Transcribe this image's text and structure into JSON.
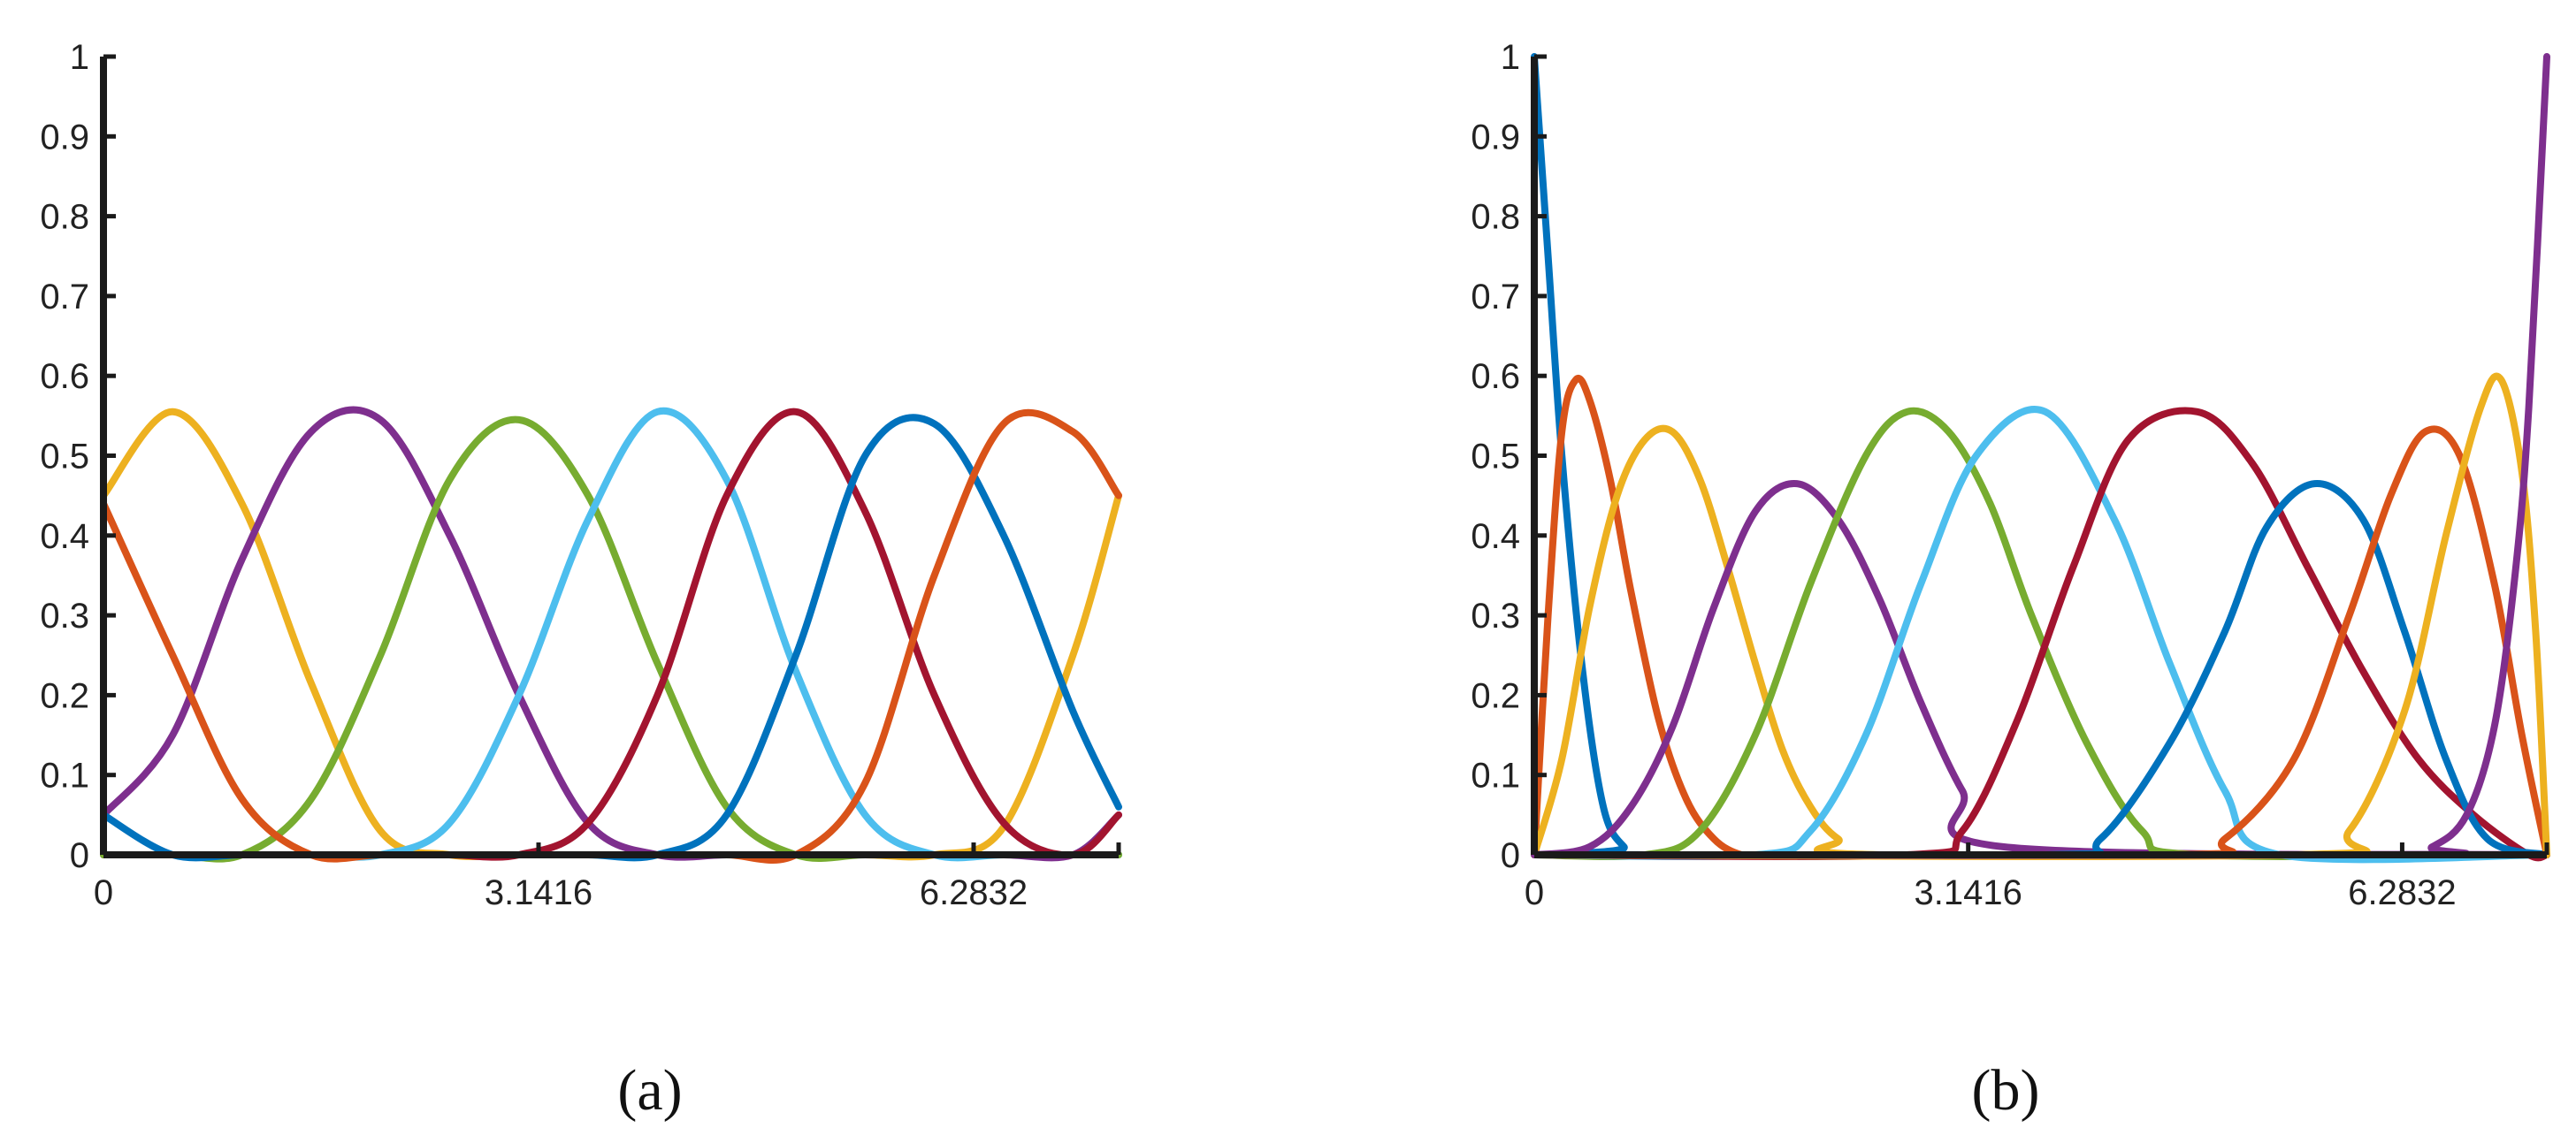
{
  "colors": {
    "blue": "#0072BD",
    "orange": "#D95319",
    "yellow": "#EDB120",
    "purple": "#7E2F8E",
    "green": "#77AC30",
    "cyan": "#4DBEEE",
    "red": "#A2142F",
    "axis": "#1a1a1a"
  },
  "chart_data": [
    {
      "type": "line",
      "panel": "a",
      "caption": "(a)",
      "title": "",
      "xlabel": "",
      "ylabel": "",
      "xlim": [
        0,
        7.3304
      ],
      "ylim": [
        0,
        1
      ],
      "xticks": [
        0,
        3.1416,
        6.2832
      ],
      "xtick_labels": [
        "0",
        "3.1416",
        "6.2832"
      ],
      "yticks": [
        0,
        0.1,
        0.2,
        0.3,
        0.4,
        0.5,
        0.6,
        0.7,
        0.8,
        0.9,
        1
      ],
      "ytick_labels": [
        "0",
        "0.1",
        "0.2",
        "0.3",
        "0.4",
        "0.5",
        "0.6",
        "0.7",
        "0.8",
        "0.9",
        "1"
      ],
      "series": [
        {
          "color": "yellow",
          "x": [
            0,
            0.5,
            1.0,
            1.5,
            2.0,
            2.5,
            3.0,
            3.5,
            4.0,
            4.5,
            5.0,
            5.5,
            6.0,
            6.5,
            7.0,
            7.3304
          ],
          "values": [
            0.45,
            0.555,
            0.44,
            0.215,
            0.03,
            0,
            0,
            0,
            0,
            0,
            0,
            0,
            0,
            0.035,
            0.25,
            0.45
          ]
        },
        {
          "color": "purple",
          "x": [
            0,
            0.5,
            1.0,
            1.5,
            2.0,
            2.5,
            3.0,
            3.5,
            4.0,
            4.5,
            5.0,
            5.5,
            6.0,
            6.5,
            7.0,
            7.3304
          ],
          "values": [
            0.05,
            0.15,
            0.37,
            0.53,
            0.545,
            0.4,
            0.2,
            0.04,
            0,
            0,
            0,
            0,
            0,
            0,
            0,
            0.05
          ]
        },
        {
          "color": "green",
          "x": [
            0,
            0.5,
            1.0,
            1.5,
            2.0,
            2.5,
            3.0,
            3.5,
            4.0,
            4.5,
            5.0,
            5.5,
            6.0,
            6.5,
            7.0,
            7.3304
          ],
          "values": [
            0,
            0,
            0,
            0.07,
            0.25,
            0.47,
            0.545,
            0.45,
            0.24,
            0.06,
            0,
            0,
            0,
            0,
            0,
            0
          ]
        },
        {
          "color": "cyan",
          "x": [
            0,
            0.5,
            1.0,
            1.5,
            2.0,
            2.5,
            3.0,
            3.5,
            4.0,
            4.5,
            5.0,
            5.5,
            6.0,
            6.5,
            7.0,
            7.3304
          ],
          "values": [
            0,
            0,
            0,
            0,
            0,
            0.04,
            0.2,
            0.42,
            0.555,
            0.47,
            0.23,
            0.05,
            0,
            0,
            0,
            0
          ]
        },
        {
          "color": "red",
          "x": [
            0,
            0.5,
            1.0,
            1.5,
            2.0,
            2.5,
            3.0,
            3.5,
            4.0,
            4.5,
            5.0,
            5.5,
            6.0,
            6.5,
            7.0,
            7.3304
          ],
          "values": [
            0,
            0,
            0,
            0,
            0,
            0,
            0,
            0.04,
            0.2,
            0.45,
            0.555,
            0.43,
            0.2,
            0.04,
            0,
            0.05
          ]
        },
        {
          "color": "blue",
          "x": [
            0,
            0.5,
            1.0,
            1.5,
            2.0,
            2.5,
            3.0,
            3.5,
            4.0,
            4.5,
            5.0,
            5.5,
            6.0,
            6.5,
            7.0,
            7.3304
          ],
          "values": [
            0.05,
            0,
            0,
            0,
            0,
            0,
            0,
            0,
            0,
            0.05,
            0.25,
            0.5,
            0.54,
            0.4,
            0.18,
            0.06
          ]
        },
        {
          "color": "orange",
          "x": [
            0,
            0.5,
            1.0,
            1.5,
            2.0,
            2.5,
            3.0,
            3.5,
            4.0,
            4.5,
            5.0,
            5.5,
            6.0,
            6.5,
            7.0,
            7.3304
          ],
          "values": [
            0.44,
            0.25,
            0.07,
            0,
            0,
            0,
            0,
            0,
            0,
            0,
            0,
            0.09,
            0.35,
            0.54,
            0.53,
            0.45
          ]
        },
        {
          "color": "green",
          "x": [
            0,
            7.3304
          ],
          "values": [
            0,
            0
          ]
        }
      ]
    },
    {
      "type": "line",
      "panel": "b",
      "caption": "(b)",
      "title": "",
      "xlabel": "",
      "ylabel": "",
      "xlim": [
        0,
        7.3304
      ],
      "ylim": [
        0,
        1
      ],
      "xticks": [
        0,
        3.1416,
        6.2832
      ],
      "xtick_labels": [
        "0",
        "3.1416",
        "6.2832"
      ],
      "yticks": [
        0,
        0.1,
        0.2,
        0.3,
        0.4,
        0.5,
        0.6,
        0.7,
        0.8,
        0.9,
        1
      ],
      "ytick_labels": [
        "0",
        "0.1",
        "0.2",
        "0.3",
        "0.4",
        "0.5",
        "0.6",
        "0.7",
        "0.8",
        "0.9",
        "1"
      ],
      "series": [
        {
          "color": "blue",
          "x": [
            0,
            0.1,
            0.2,
            0.35,
            0.5,
            0.65,
            0.8,
            7.3304
          ],
          "values": [
            1,
            0.75,
            0.5,
            0.23,
            0.06,
            0.01,
            0,
            0
          ]
        },
        {
          "color": "orange",
          "x": [
            0,
            0.1,
            0.2,
            0.3,
            0.4,
            0.55,
            0.7,
            0.9,
            1.1,
            1.3,
            1.5,
            1.7,
            7.3304
          ],
          "values": [
            0,
            0.3,
            0.53,
            0.595,
            0.57,
            0.47,
            0.33,
            0.17,
            0.07,
            0.02,
            0,
            0,
            0
          ]
        },
        {
          "color": "yellow",
          "x": [
            0,
            0.2,
            0.4,
            0.6,
            0.8,
            1.0,
            1.2,
            1.4,
            1.6,
            1.8,
            2.0,
            2.2,
            2.5,
            7.3304
          ],
          "values": [
            0,
            0.12,
            0.31,
            0.45,
            0.52,
            0.53,
            0.47,
            0.36,
            0.24,
            0.13,
            0.06,
            0.02,
            0,
            0
          ]
        },
        {
          "color": "purple",
          "x": [
            0,
            0.4,
            0.7,
            1.0,
            1.3,
            1.6,
            1.9,
            2.2,
            2.5,
            2.8,
            3.1,
            3.4,
            7.3304
          ],
          "values": [
            0,
            0.01,
            0.06,
            0.16,
            0.31,
            0.43,
            0.465,
            0.42,
            0.32,
            0.19,
            0.08,
            0.01,
            0
          ]
        },
        {
          "color": "green",
          "x": [
            0,
            0.8,
            1.2,
            1.6,
            2.0,
            2.4,
            2.7,
            3.0,
            3.3,
            3.6,
            4.0,
            4.4,
            4.8,
            7.3304
          ],
          "values": [
            0,
            0,
            0.03,
            0.15,
            0.34,
            0.5,
            0.555,
            0.53,
            0.44,
            0.3,
            0.14,
            0.03,
            0,
            0
          ]
        },
        {
          "color": "cyan",
          "x": [
            0,
            1.6,
            2.0,
            2.4,
            2.8,
            3.2,
            3.7,
            4.2,
            4.6,
            5.0,
            5.4,
            7.3304
          ],
          "values": [
            0,
            0,
            0.03,
            0.15,
            0.34,
            0.5,
            0.555,
            0.42,
            0.24,
            0.08,
            0,
            0
          ]
        },
        {
          "color": "red",
          "x": [
            0,
            2.7,
            3.1,
            3.5,
            3.9,
            4.3,
            4.8,
            5.2,
            5.6,
            6.0,
            6.4,
            6.8,
            7.2,
            7.3304
          ],
          "values": [
            0,
            0,
            0.03,
            0.17,
            0.36,
            0.52,
            0.555,
            0.49,
            0.36,
            0.23,
            0.12,
            0.05,
            0,
            0
          ]
        },
        {
          "color": "blue",
          "x": [
            0,
            3.7,
            4.1,
            4.6,
            5.0,
            5.3,
            5.65,
            6.0,
            6.3,
            6.6,
            6.9,
            7.3304
          ],
          "values": [
            0,
            0,
            0.02,
            0.14,
            0.28,
            0.41,
            0.465,
            0.42,
            0.28,
            0.12,
            0.02,
            0
          ]
        },
        {
          "color": "orange",
          "x": [
            0,
            4.6,
            5.0,
            5.5,
            5.9,
            6.2,
            6.45,
            6.7,
            6.95,
            7.15,
            7.3304
          ],
          "values": [
            0,
            0,
            0.02,
            0.12,
            0.3,
            0.45,
            0.53,
            0.5,
            0.34,
            0.15,
            0
          ]
        },
        {
          "color": "yellow",
          "x": [
            0,
            5.5,
            5.9,
            6.3,
            6.6,
            6.85,
            7.0,
            7.15,
            7.25,
            7.3304
          ],
          "values": [
            0,
            0,
            0.03,
            0.18,
            0.4,
            0.56,
            0.595,
            0.48,
            0.28,
            0
          ]
        },
        {
          "color": "purple",
          "x": [
            0,
            6.2,
            6.5,
            6.75,
            6.95,
            7.1,
            7.2,
            7.3304
          ],
          "values": [
            0,
            0,
            0.01,
            0.05,
            0.16,
            0.35,
            0.56,
            1
          ]
        }
      ]
    }
  ]
}
